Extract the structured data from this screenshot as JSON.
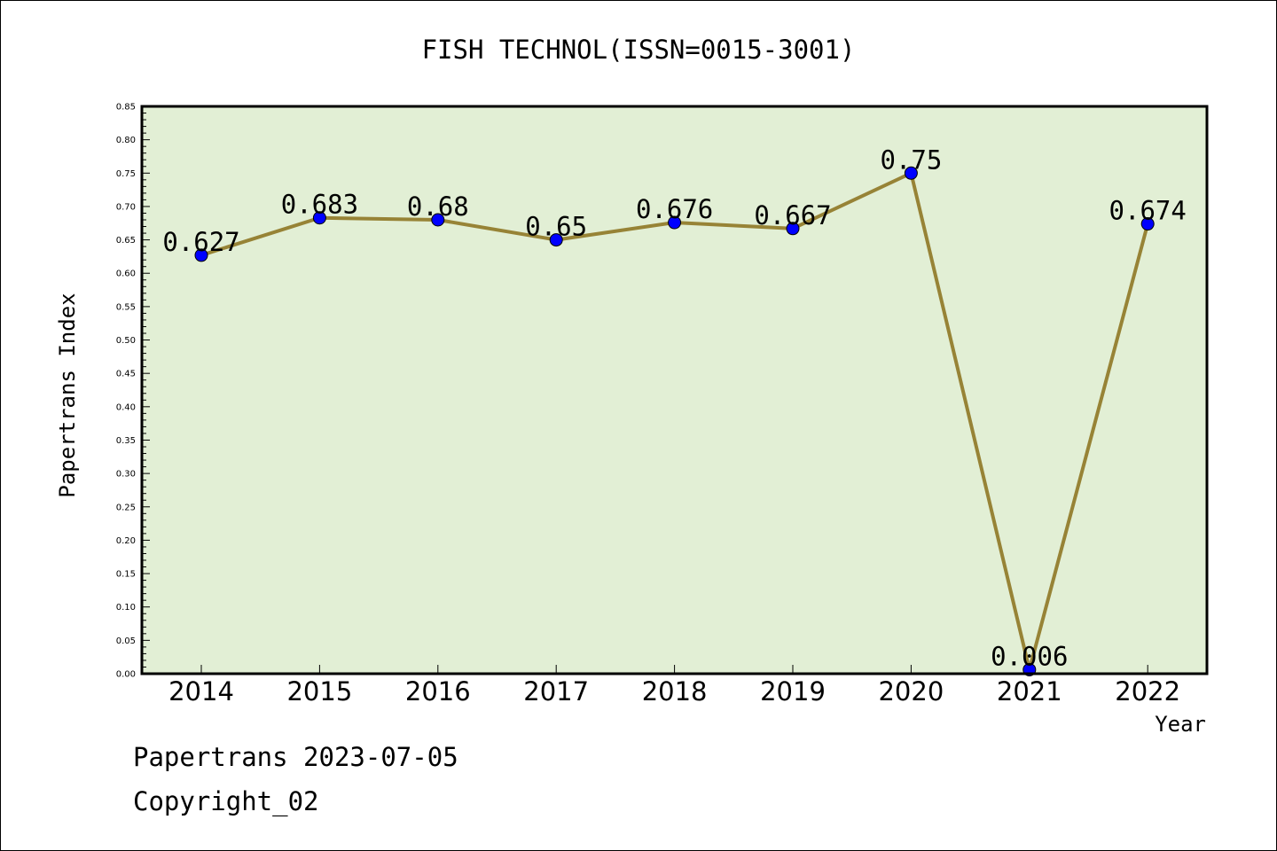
{
  "chart_data": {
    "type": "line",
    "title": "FISH TECHNOL(ISSN=0015-3001)",
    "xlabel": "Year",
    "ylabel": "Papertrans Index",
    "categories": [
      "2014",
      "2015",
      "2016",
      "2017",
      "2018",
      "2019",
      "2020",
      "2021",
      "2022"
    ],
    "series": [
      {
        "values": [
          0.627,
          0.683,
          0.68,
          0.65,
          0.676,
          0.667,
          0.75,
          0.006,
          0.674
        ],
        "labels": [
          "0.627",
          "0.683",
          "0.68",
          "0.65",
          "0.676",
          "0.667",
          "0.75",
          "0.006",
          "0.674"
        ]
      }
    ],
    "ylim": [
      0,
      0.85
    ],
    "yticks": [
      "0.00",
      "0.05",
      "0.10",
      "0.15",
      "0.20",
      "0.25",
      "0.30",
      "0.35",
      "0.40",
      "0.45",
      "0.50",
      "0.55",
      "0.60",
      "0.65",
      "0.70",
      "0.75",
      "0.80",
      "0.85"
    ],
    "grid": false,
    "colors": {
      "plot_background": "#e2efd5",
      "line": "#978336",
      "marker": "#0000ff"
    }
  },
  "footer": {
    "date_line": "Papertrans 2023-07-05",
    "copyright": "Copyright_02"
  }
}
